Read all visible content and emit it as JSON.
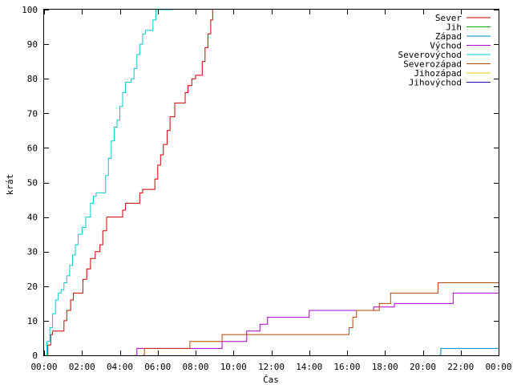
{
  "chart_data": {
    "type": "line",
    "title": "",
    "xlabel": "Čas",
    "ylabel": "krát",
    "xlim": [
      0,
      24
    ],
    "ylim": [
      0,
      100
    ],
    "x_unit": "hours",
    "grid": false,
    "legend_position": "top-right",
    "x_ticks": [
      {
        "value": 0,
        "label": "00:00"
      },
      {
        "value": 2,
        "label": "02:00"
      },
      {
        "value": 4,
        "label": "04:00"
      },
      {
        "value": 6,
        "label": "06:00"
      },
      {
        "value": 8,
        "label": "08:00"
      },
      {
        "value": 10,
        "label": "10:00"
      },
      {
        "value": 12,
        "label": "12:00"
      },
      {
        "value": 14,
        "label": "14:00"
      },
      {
        "value": 16,
        "label": "16:00"
      },
      {
        "value": 18,
        "label": "18:00"
      },
      {
        "value": 20,
        "label": "20:00"
      },
      {
        "value": 22,
        "label": "22:00"
      },
      {
        "value": 24,
        "label": "00:00"
      }
    ],
    "y_ticks": [
      {
        "value": 0,
        "label": "0"
      },
      {
        "value": 10,
        "label": "10"
      },
      {
        "value": 20,
        "label": "20"
      },
      {
        "value": 30,
        "label": "30"
      },
      {
        "value": 40,
        "label": "40"
      },
      {
        "value": 50,
        "label": "50"
      },
      {
        "value": 60,
        "label": "60"
      },
      {
        "value": 70,
        "label": "70"
      },
      {
        "value": 80,
        "label": "80"
      },
      {
        "value": 90,
        "label": "90"
      },
      {
        "value": 100,
        "label": "100"
      }
    ],
    "series": [
      {
        "name": "Sever",
        "color": "#cc0000",
        "step": true,
        "points": [
          [
            0.1,
            0
          ],
          [
            0.2,
            3
          ],
          [
            0.35,
            6
          ],
          [
            0.45,
            7
          ],
          [
            0.9,
            7
          ],
          [
            1.05,
            10
          ],
          [
            1.2,
            13
          ],
          [
            1.4,
            16
          ],
          [
            1.55,
            18
          ],
          [
            1.9,
            18
          ],
          [
            2.05,
            22
          ],
          [
            2.25,
            25
          ],
          [
            2.45,
            28
          ],
          [
            2.7,
            30
          ],
          [
            2.95,
            32
          ],
          [
            3.1,
            36
          ],
          [
            3.3,
            40
          ],
          [
            4.0,
            40
          ],
          [
            4.15,
            42
          ],
          [
            4.3,
            44
          ],
          [
            4.9,
            44
          ],
          [
            5.05,
            47
          ],
          [
            5.2,
            48
          ],
          [
            5.7,
            48
          ],
          [
            5.85,
            51
          ],
          [
            6.0,
            55
          ],
          [
            6.15,
            58
          ],
          [
            6.3,
            61
          ],
          [
            6.5,
            65
          ],
          [
            6.65,
            69
          ],
          [
            6.9,
            73
          ],
          [
            7.3,
            73
          ],
          [
            7.45,
            76
          ],
          [
            7.6,
            78
          ],
          [
            7.8,
            80
          ],
          [
            8.0,
            81
          ],
          [
            8.2,
            81
          ],
          [
            8.35,
            85
          ],
          [
            8.5,
            89
          ],
          [
            8.65,
            93
          ],
          [
            8.8,
            97
          ],
          [
            8.9,
            100
          ]
        ]
      },
      {
        "name": "Jih",
        "color": "#00aa00",
        "step": true,
        "points": []
      },
      {
        "name": "Západ",
        "color": "#0088cc",
        "step": true,
        "points": [
          [
            20.85,
            0
          ],
          [
            20.95,
            2
          ],
          [
            24,
            2
          ]
        ]
      },
      {
        "name": "Východ",
        "color": "#aa00cc",
        "step": true,
        "points": [
          [
            4.8,
            0
          ],
          [
            4.9,
            2
          ],
          [
            9.3,
            2
          ],
          [
            9.4,
            4
          ],
          [
            10.6,
            4
          ],
          [
            10.7,
            7
          ],
          [
            11.3,
            7
          ],
          [
            11.4,
            9
          ],
          [
            11.7,
            9
          ],
          [
            11.8,
            11
          ],
          [
            13.9,
            11
          ],
          [
            14.0,
            13
          ],
          [
            17.3,
            13
          ],
          [
            17.4,
            14
          ],
          [
            18.4,
            14
          ],
          [
            18.5,
            15
          ],
          [
            21.5,
            15
          ],
          [
            21.6,
            18
          ],
          [
            24,
            18
          ]
        ]
      },
      {
        "name": "Severovýchod",
        "color": "#00cccc",
        "step": true,
        "points": [
          [
            0.05,
            0
          ],
          [
            0.15,
            4
          ],
          [
            0.3,
            8
          ],
          [
            0.45,
            12
          ],
          [
            0.6,
            16
          ],
          [
            0.75,
            18
          ],
          [
            0.9,
            19
          ],
          [
            1.05,
            21
          ],
          [
            1.2,
            23
          ],
          [
            1.35,
            26
          ],
          [
            1.5,
            29
          ],
          [
            1.65,
            32
          ],
          [
            1.8,
            35
          ],
          [
            2.0,
            37
          ],
          [
            2.2,
            40
          ],
          [
            2.45,
            44
          ],
          [
            2.6,
            46
          ],
          [
            2.75,
            47
          ],
          [
            3.1,
            47
          ],
          [
            3.25,
            52
          ],
          [
            3.4,
            57
          ],
          [
            3.55,
            62
          ],
          [
            3.7,
            66
          ],
          [
            3.85,
            68
          ],
          [
            4.0,
            72
          ],
          [
            4.15,
            76
          ],
          [
            4.3,
            79
          ],
          [
            4.5,
            79
          ],
          [
            4.6,
            80
          ],
          [
            4.75,
            83
          ],
          [
            4.9,
            87
          ],
          [
            5.05,
            90
          ],
          [
            5.2,
            93
          ],
          [
            5.35,
            94
          ],
          [
            5.6,
            94
          ],
          [
            5.75,
            97
          ],
          [
            5.9,
            100
          ],
          [
            6.8,
            100
          ]
        ]
      },
      {
        "name": "Severozápad",
        "color": "#bb4400",
        "step": true,
        "points": [
          [
            5.2,
            0
          ],
          [
            5.3,
            2
          ],
          [
            7.6,
            2
          ],
          [
            7.7,
            4
          ],
          [
            9.3,
            4
          ],
          [
            9.4,
            6
          ],
          [
            16.0,
            6
          ],
          [
            16.1,
            8
          ],
          [
            16.3,
            11
          ],
          [
            16.5,
            13
          ],
          [
            17.6,
            13
          ],
          [
            17.7,
            15
          ],
          [
            18.2,
            15
          ],
          [
            18.3,
            18
          ],
          [
            20.7,
            18
          ],
          [
            20.8,
            21
          ],
          [
            24,
            21
          ]
        ]
      },
      {
        "name": "Jihozápad",
        "color": "#ddcc00",
        "step": true,
        "points": []
      },
      {
        "name": "Jihovýchod",
        "color": "#3300aa",
        "step": true,
        "points": []
      }
    ]
  }
}
